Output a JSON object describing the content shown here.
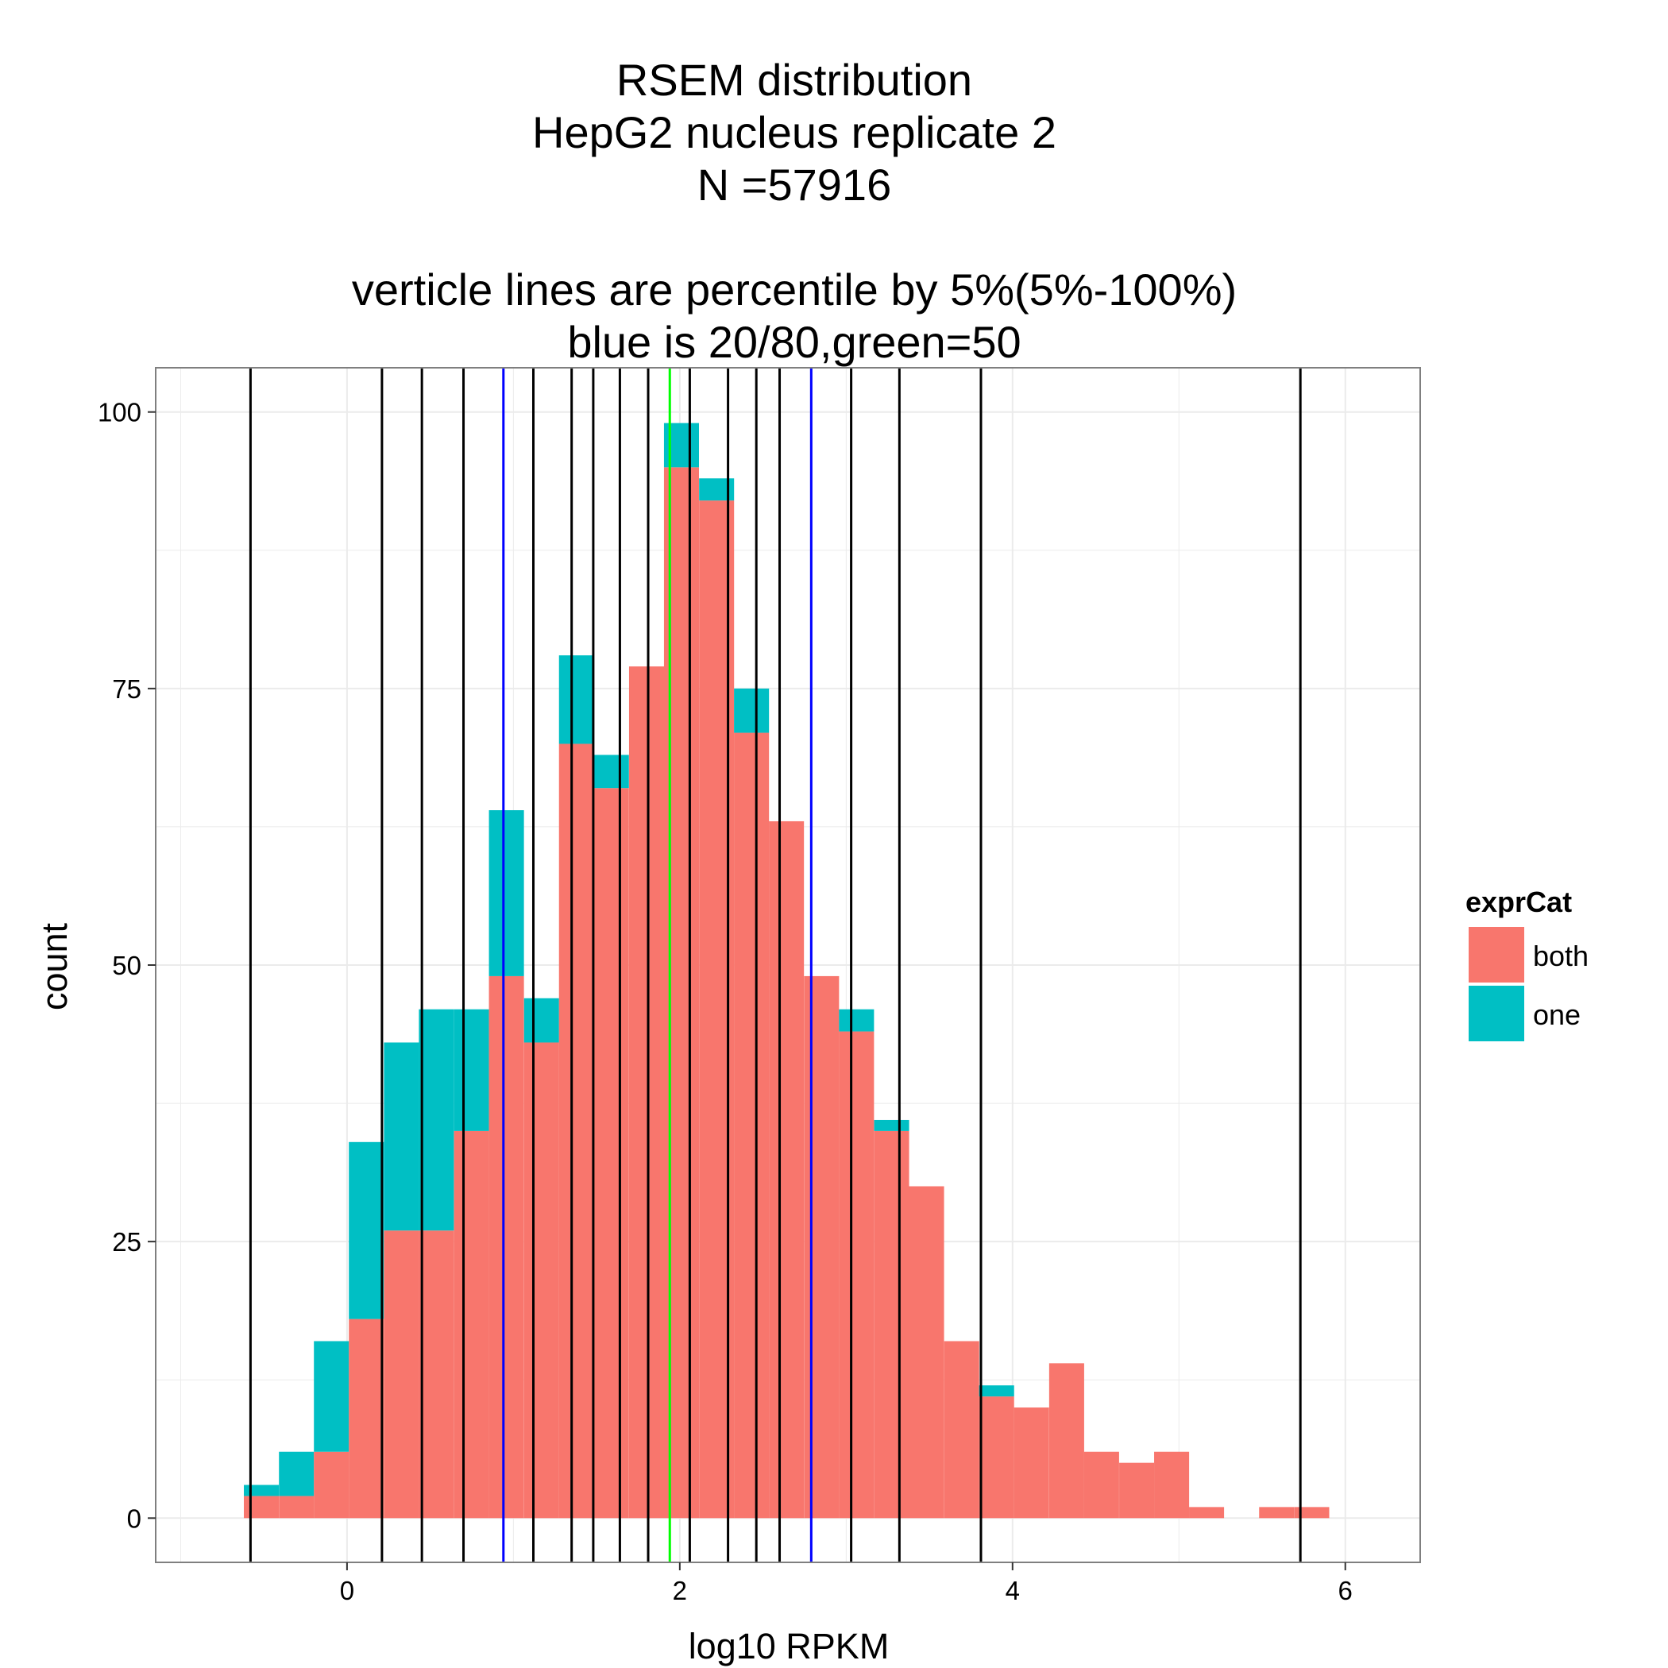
{
  "chart_data": {
    "type": "histogram",
    "title_lines": [
      "RSEM distribution",
      "HepG2 nucleus replicate 2",
      "N =57916",
      "",
      "verticle lines are percentile by 5%(5%-100%)",
      "blue is 20/80,green=50"
    ],
    "xlabel": "log10 RPKM",
    "ylabel": "count",
    "xlim": [
      -1.15,
      6.45
    ],
    "ylim": [
      -4,
      104
    ],
    "x_ticks": [
      0,
      2,
      4,
      6
    ],
    "x_tick_labels": [
      "0",
      "2",
      "4",
      "6"
    ],
    "y_ticks": [
      0,
      25,
      50,
      75,
      100
    ],
    "y_tick_labels": [
      "0",
      "25",
      "50",
      "75",
      "100"
    ],
    "grid": true,
    "bin_width": 0.2103,
    "bin_starts": [
      -0.62,
      -0.409,
      -0.199,
      0.011,
      0.222,
      0.432,
      0.643,
      0.853,
      1.064,
      1.274,
      1.484,
      1.695,
      1.905,
      2.116,
      2.326,
      2.536,
      2.747,
      2.957,
      3.168,
      3.378,
      3.589,
      3.799,
      4.009,
      4.22,
      4.43,
      4.641,
      4.851,
      5.061,
      5.272,
      5.482,
      5.693
    ],
    "series": [
      {
        "name": "both",
        "color": "#f8766d",
        "values": [
          2,
          2,
          6,
          18,
          26,
          26,
          35,
          49,
          43,
          70,
          66,
          77,
          95,
          92,
          71,
          63,
          49,
          44,
          35,
          30,
          16,
          11,
          10,
          14,
          6,
          5,
          6,
          1,
          0,
          1,
          1
        ]
      },
      {
        "name": "one",
        "color": "#00bfc4",
        "values": [
          1,
          4,
          10,
          16,
          17,
          20,
          11,
          15,
          4,
          8,
          3,
          0,
          4,
          2,
          4,
          0,
          0,
          2,
          1,
          0,
          0,
          1,
          0,
          0,
          0,
          0,
          0,
          0,
          0,
          0,
          0
        ]
      }
    ],
    "percentile_lines": [
      {
        "x": -0.58,
        "color": "#000000"
      },
      {
        "x": 0.21,
        "color": "#000000"
      },
      {
        "x": 0.45,
        "color": "#000000"
      },
      {
        "x": 0.7,
        "color": "#000000"
      },
      {
        "x": 0.94,
        "color": "#0000ff"
      },
      {
        "x": 1.12,
        "color": "#000000"
      },
      {
        "x": 1.35,
        "color": "#000000"
      },
      {
        "x": 1.48,
        "color": "#000000"
      },
      {
        "x": 1.64,
        "color": "#000000"
      },
      {
        "x": 1.81,
        "color": "#000000"
      },
      {
        "x": 1.94,
        "color": "#00ff00"
      },
      {
        "x": 2.06,
        "color": "#000000"
      },
      {
        "x": 2.29,
        "color": "#000000"
      },
      {
        "x": 2.46,
        "color": "#000000"
      },
      {
        "x": 2.6,
        "color": "#000000"
      },
      {
        "x": 2.79,
        "color": "#0000ff"
      },
      {
        "x": 3.03,
        "color": "#000000"
      },
      {
        "x": 3.32,
        "color": "#000000"
      },
      {
        "x": 3.81,
        "color": "#000000"
      },
      {
        "x": 5.73,
        "color": "#000000"
      }
    ],
    "legend": {
      "title": "exprCat",
      "position": "right",
      "entries": [
        {
          "label": "both",
          "color": "#f8766d"
        },
        {
          "label": "one",
          "color": "#00bfc4"
        }
      ]
    },
    "panel_border_color": "#7f7f7f",
    "grid_color": "#ebebeb"
  }
}
